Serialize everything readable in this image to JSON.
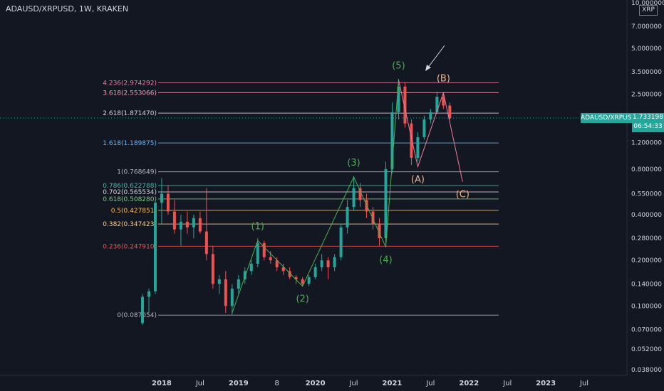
{
  "header": {
    "title": "ADAUSD/XRPUSD, 1W, KRAKEN"
  },
  "price_axis": {
    "currency": "XRP",
    "ticks": [
      "10.000000",
      "7.000000",
      "5.000000",
      "3.500000",
      "2.500000",
      "1.200000",
      "0.800000",
      "0.550000",
      "0.400000",
      "0.280000",
      "0.200000",
      "0.140000",
      "0.100000",
      "0.070000",
      "0.052000",
      "0.038000"
    ]
  },
  "time_axis": {
    "ticks": [
      "2018",
      "Jul",
      "2019",
      "8",
      "2020",
      "Jul",
      "2021",
      "Jul",
      "2022",
      "Jul",
      "2023",
      "Jul"
    ]
  },
  "last_price": {
    "symbol": "ADAUSD/XRPUSD",
    "value": "1.733198",
    "countdown": "06:54:33"
  },
  "colors": {
    "bg": "#131722",
    "up": "#26a69a",
    "down": "#ef5350",
    "text": "#d1d4dc",
    "wave": "#4caf50",
    "correction": "#f4b183"
  },
  "chart_data": {
    "type": "candlestick",
    "title": "ADAUSD/XRPUSD, 1W, KRAKEN",
    "y_scale": "log",
    "ylim": [
      0.038,
      10
    ],
    "xlim": [
      "2017-10",
      "2023-12"
    ],
    "fib_levels": [
      {
        "label": "4.236(2.974292)",
        "value": 2.974292,
        "color": "#ef7b9a"
      },
      {
        "label": "3.618(2.553066)",
        "value": 2.553066,
        "color": "#f8a0b8"
      },
      {
        "label": "2.618(1.871470)",
        "value": 1.87147,
        "color": "#d1d4dc"
      },
      {
        "label": "1.618(1.189875)",
        "value": 1.189875,
        "color": "#64b5f6"
      },
      {
        "label": "1(0.768649)",
        "value": 0.768649,
        "color": "#b2b5be"
      },
      {
        "label": "0.786(0.622788)",
        "value": 0.622788,
        "color": "#4db6ac"
      },
      {
        "label": "0.702(0.565534)",
        "value": 0.565534,
        "color": "#d1d4dc"
      },
      {
        "label": "0.618(0.508280)",
        "value": 0.50828,
        "color": "#81c784"
      },
      {
        "label": "0.5(0.427851)",
        "value": 0.427851,
        "color": "#ffb74d"
      },
      {
        "label": "0.382(0.347423)",
        "value": 0.347423,
        "color": "#ffcc80"
      },
      {
        "label": "0.236(0.247910)",
        "value": 0.24791,
        "color": "#ef5350"
      },
      {
        "label": "0(0.087054)",
        "value": 0.087054,
        "color": "#b2b5be"
      }
    ],
    "wave_labels": [
      {
        "label": "(1)",
        "date": "2019-04",
        "value": 0.27
      },
      {
        "label": "(2)",
        "date": "2019-11",
        "value": 0.135
      },
      {
        "label": "(3)",
        "date": "2020-07",
        "value": 0.71
      },
      {
        "label": "(4)",
        "date": "2020-12",
        "value": 0.245
      },
      {
        "label": "(5)",
        "date": "2021-02",
        "value": 3.1
      },
      {
        "label": "(A)",
        "date": "2021-05",
        "value": 0.83
      },
      {
        "label": "(B)",
        "date": "2021-09",
        "value": 2.55
      },
      {
        "label": "(C)",
        "date": "2021-12",
        "value": 0.66
      }
    ],
    "wave_path": [
      {
        "date": "2018-12",
        "value": 0.09
      },
      {
        "date": "2019-04",
        "value": 0.27
      },
      {
        "date": "2019-11",
        "value": 0.135
      },
      {
        "date": "2020-07",
        "value": 0.71
      },
      {
        "date": "2020-12",
        "value": 0.245
      },
      {
        "date": "2021-02",
        "value": 3.1
      }
    ],
    "correction_path": [
      {
        "date": "2021-02",
        "value": 3.1
      },
      {
        "date": "2021-05",
        "value": 0.83
      },
      {
        "date": "2021-09",
        "value": 2.55
      },
      {
        "date": "2021-12",
        "value": 0.66
      }
    ],
    "candles": [
      [
        "2017-10",
        0.077,
        0.12,
        0.075,
        0.115
      ],
      [
        "2017-11",
        0.115,
        0.13,
        0.09,
        0.125
      ],
      [
        "2017-12",
        0.125,
        0.5,
        0.12,
        0.48
      ],
      [
        "2018-01",
        0.48,
        0.7,
        0.35,
        0.55
      ],
      [
        "2018-02",
        0.55,
        0.62,
        0.4,
        0.42
      ],
      [
        "2018-03",
        0.42,
        0.5,
        0.3,
        0.32
      ],
      [
        "2018-04",
        0.32,
        0.4,
        0.25,
        0.36
      ],
      [
        "2018-05",
        0.36,
        0.42,
        0.3,
        0.33
      ],
      [
        "2018-06",
        0.33,
        0.4,
        0.28,
        0.38
      ],
      [
        "2018-07",
        0.38,
        0.42,
        0.3,
        0.31
      ],
      [
        "2018-08",
        0.31,
        0.6,
        0.2,
        0.22
      ],
      [
        "2018-09",
        0.22,
        0.25,
        0.13,
        0.14
      ],
      [
        "2018-10",
        0.14,
        0.16,
        0.12,
        0.15
      ],
      [
        "2018-11",
        0.15,
        0.17,
        0.09,
        0.1
      ],
      [
        "2018-12",
        0.1,
        0.14,
        0.087,
        0.13
      ],
      [
        "2019-01",
        0.13,
        0.16,
        0.12,
        0.15
      ],
      [
        "2019-02",
        0.15,
        0.18,
        0.14,
        0.17
      ],
      [
        "2019-03",
        0.17,
        0.2,
        0.16,
        0.19
      ],
      [
        "2019-04",
        0.19,
        0.28,
        0.18,
        0.26
      ],
      [
        "2019-05",
        0.26,
        0.27,
        0.2,
        0.21
      ],
      [
        "2019-06",
        0.21,
        0.23,
        0.19,
        0.2
      ],
      [
        "2019-07",
        0.2,
        0.21,
        0.17,
        0.18
      ],
      [
        "2019-08",
        0.18,
        0.19,
        0.16,
        0.17
      ],
      [
        "2019-09",
        0.17,
        0.18,
        0.15,
        0.155
      ],
      [
        "2019-10",
        0.155,
        0.16,
        0.14,
        0.15
      ],
      [
        "2019-11",
        0.15,
        0.155,
        0.135,
        0.14
      ],
      [
        "2019-12",
        0.14,
        0.16,
        0.135,
        0.155
      ],
      [
        "2020-01",
        0.155,
        0.19,
        0.15,
        0.18
      ],
      [
        "2020-02",
        0.18,
        0.22,
        0.17,
        0.2
      ],
      [
        "2020-03",
        0.2,
        0.21,
        0.15,
        0.18
      ],
      [
        "2020-04",
        0.18,
        0.22,
        0.17,
        0.21
      ],
      [
        "2020-05",
        0.21,
        0.35,
        0.2,
        0.33
      ],
      [
        "2020-06",
        0.33,
        0.5,
        0.3,
        0.45
      ],
      [
        "2020-07",
        0.45,
        0.72,
        0.43,
        0.6
      ],
      [
        "2020-08",
        0.6,
        0.65,
        0.45,
        0.5
      ],
      [
        "2020-09",
        0.5,
        0.55,
        0.38,
        0.42
      ],
      [
        "2020-10",
        0.42,
        0.45,
        0.32,
        0.35
      ],
      [
        "2020-11",
        0.35,
        0.38,
        0.25,
        0.28
      ],
      [
        "2020-12",
        0.28,
        0.9,
        0.26,
        0.8
      ],
      [
        "2021-01",
        0.8,
        2.2,
        0.75,
        1.9
      ],
      [
        "2021-02",
        1.9,
        3.15,
        1.7,
        2.8
      ],
      [
        "2021-03",
        2.8,
        3.0,
        1.5,
        1.6
      ],
      [
        "2021-04",
        1.6,
        1.7,
        0.85,
        0.95
      ],
      [
        "2021-05",
        0.95,
        1.4,
        0.9,
        1.3
      ],
      [
        "2021-06",
        1.3,
        1.8,
        1.25,
        1.7
      ],
      [
        "2021-07",
        1.7,
        2.0,
        1.6,
        1.9
      ],
      [
        "2021-08",
        1.9,
        2.6,
        1.85,
        2.4
      ],
      [
        "2021-09",
        2.4,
        2.55,
        2.0,
        2.1
      ],
      [
        "2021-10",
        2.1,
        2.2,
        1.7,
        1.73
      ]
    ]
  }
}
